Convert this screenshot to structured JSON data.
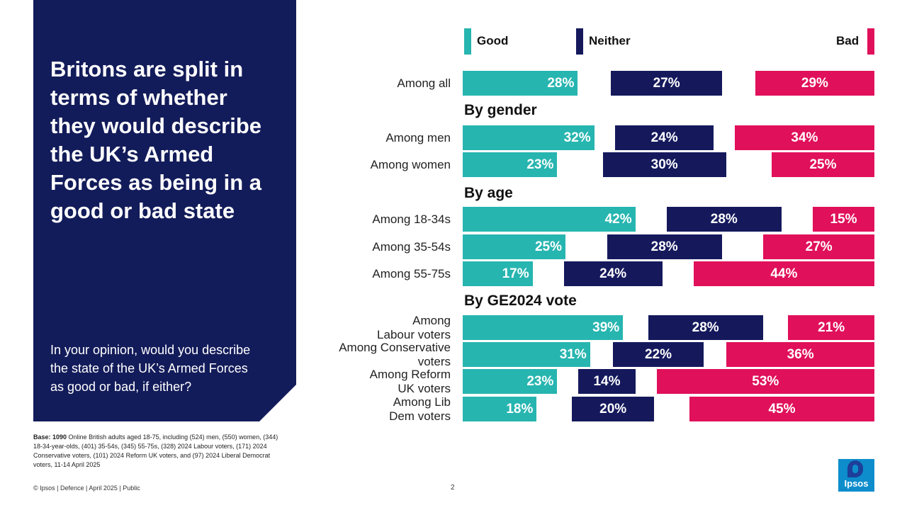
{
  "colors": {
    "navy_panel": "#131c5a",
    "good": "#27b5b0",
    "neither": "#15195c",
    "bad": "#e0105a"
  },
  "headline": "Britons are split in terms of whether they would describe the UK’s Armed Forces as being in a good or bad state",
  "question": "In your opinion, would you describe the state of the UK’s Armed Forces as good or bad, if either?",
  "base_note": {
    "label": "Base: 1090",
    "text": " Online British adults aged 18-75, including (524) men, (550) women, (344) 18-34-year-olds, (401) 35-54s, (345) 55-75s, (328) 2024 Labour voters, (171) 2024 Conservative voters, (101) 2024 Reform UK voters, and (97) 2024 Liberal Democrat voters, 11-14 April 2025"
  },
  "footer": "© Ipsos | Defence | April 2025 | Public",
  "page_number": "2",
  "logo_text": "Ipsos",
  "chart_data": {
    "type": "bar",
    "title": "",
    "series_names": [
      "Good",
      "Neither",
      "Bad"
    ],
    "legend": [
      "Good",
      "Neither",
      "Bad"
    ],
    "sections": [
      "By gender",
      "By age",
      "By GE2024 vote"
    ],
    "rows": [
      {
        "label": "Among all",
        "section": "",
        "good": 28,
        "neither": 27,
        "bad": 29
      },
      {
        "label": "Among men",
        "section": "By gender",
        "good": 32,
        "neither": 24,
        "bad": 34
      },
      {
        "label": "Among women",
        "section": "By gender",
        "good": 23,
        "neither": 30,
        "bad": 25
      },
      {
        "label": "Among 18-34s",
        "section": "By age",
        "good": 42,
        "neither": 28,
        "bad": 15
      },
      {
        "label": "Among 35-54s",
        "section": "By age",
        "good": 25,
        "neither": 28,
        "bad": 27
      },
      {
        "label": "Among 55-75s",
        "section": "By age",
        "good": 17,
        "neither": 24,
        "bad": 44
      },
      {
        "label": "Among\nLabour voters",
        "section": "By GE2024 vote",
        "good": 39,
        "neither": 28,
        "bad": 21
      },
      {
        "label": "Among Conservative\nvoters",
        "section": "By GE2024 vote",
        "good": 31,
        "neither": 22,
        "bad": 36
      },
      {
        "label": "Among Reform\nUK voters",
        "section": "By GE2024 vote",
        "good": 23,
        "neither": 14,
        "bad": 53
      },
      {
        "label": "Among Lib\nDem voters",
        "section": "By GE2024 vote",
        "good": 18,
        "neither": 20,
        "bad": 45
      }
    ]
  }
}
